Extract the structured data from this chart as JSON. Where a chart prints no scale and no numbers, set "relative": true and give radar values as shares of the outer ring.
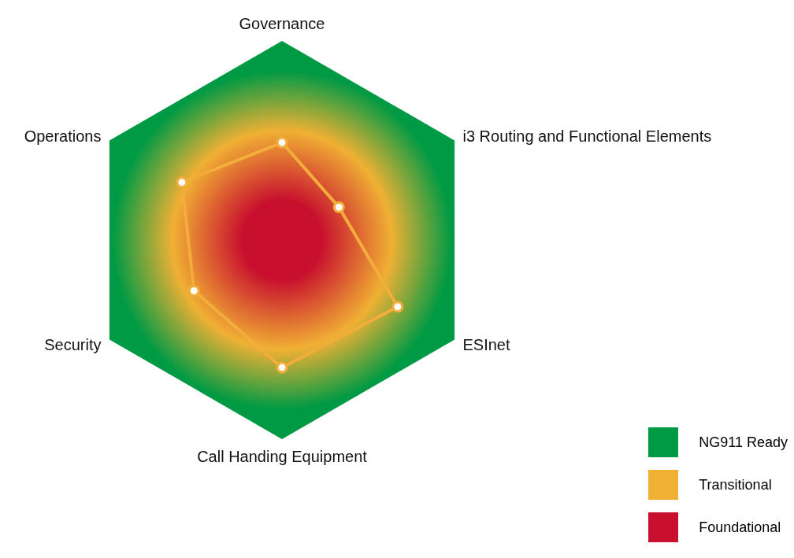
{
  "chart_data": {
    "type": "radar",
    "relative": true,
    "categories": [
      "Governance",
      "i3 Routing and Functional Elements",
      "ESInet",
      "Call Handing Equipment",
      "Security",
      "Operations"
    ],
    "series": [
      {
        "color": "#f2ad3a",
        "values": [
          0.49,
          0.33,
          0.67,
          0.64,
          0.51,
          0.58
        ]
      }
    ],
    "marker": "circle",
    "line_style": "solid",
    "bands": [
      {
        "axis": "y",
        "label": "NG911 Ready",
        "color": "#009a44"
      },
      {
        "axis": "y",
        "label": "Transitional",
        "color": "#f0b034"
      },
      {
        "axis": "y",
        "label": "Foundational",
        "color": "#c8102e"
      }
    ]
  }
}
